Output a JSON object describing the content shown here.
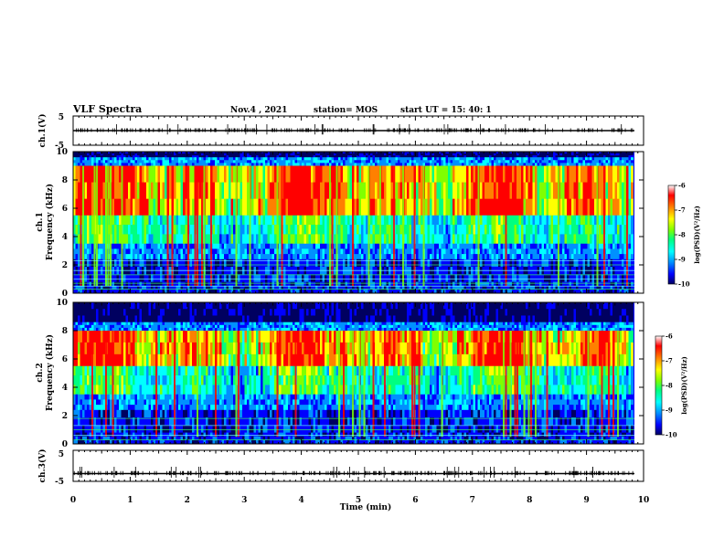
{
  "header": {
    "title": "VLF Spectra",
    "date": "Nov.4 , 2021",
    "station": "station= MOS",
    "start": "start UT = 15: 40: 1"
  },
  "colors": {
    "cmap": [
      "#000060",
      "#0000ff",
      "#0090ff",
      "#00ffff",
      "#00ff80",
      "#80ff00",
      "#ffff00",
      "#ff8000",
      "#ff0000",
      "#ffffff"
    ],
    "trace": "#000000",
    "line_green": "#33ff66",
    "line_cyan": "#66ffff"
  },
  "chart_data": [
    {
      "type": "line",
      "name": "ch1-waveform",
      "ylabel": "ch.1(V)",
      "ylim": [
        -5,
        5
      ],
      "yticks": [
        5,
        -5
      ],
      "xlim": [
        0,
        10
      ],
      "baseline": 0
    },
    {
      "type": "heatmap",
      "name": "ch1-spectrogram",
      "ylabel": "ch.1\nFrequency (kHz)",
      "ylim": [
        0,
        10
      ],
      "yticks": [
        0,
        2,
        4,
        6,
        8,
        10
      ],
      "xlim": [
        0,
        10
      ],
      "colorbar": {
        "label": "log(PSD)(V²/Hz)",
        "range": [
          -10,
          -6
        ],
        "ticks": [
          -6,
          -7,
          -8,
          -9,
          -10
        ]
      },
      "band_kHz": [
        5.5,
        9.0
      ],
      "narrowband_lines_kHz": [
        0.3,
        0.5,
        0.7,
        1.0,
        1.3,
        1.6,
        2.0,
        2.3
      ]
    },
    {
      "type": "heatmap",
      "name": "ch2-spectrogram",
      "ylabel": "ch.2\nFrequency (kHz)",
      "ylim": [
        0,
        10
      ],
      "yticks": [
        0,
        2,
        4,
        6,
        8,
        10
      ],
      "xlim": [
        0,
        10
      ],
      "colorbar": {
        "label": "log(PSD)(V²/Hz)",
        "range": [
          -10,
          -6
        ],
        "ticks": [
          -6,
          -7,
          -8,
          -9,
          -10
        ]
      },
      "band_kHz": [
        5.5,
        8.0
      ],
      "narrowband_lines_kHz": [
        0.3,
        0.6,
        1.0,
        1.3,
        1.8
      ]
    },
    {
      "type": "line",
      "name": "ch3-waveform",
      "ylabel": "ch.3(V)",
      "ylim": [
        -5,
        5
      ],
      "yticks": [
        5,
        -5
      ],
      "xlim": [
        0,
        10
      ],
      "baseline": -2.5
    }
  ],
  "xaxis": {
    "label": "Time (min)",
    "ticks": [
      0,
      1,
      2,
      3,
      4,
      5,
      6,
      7,
      8,
      9,
      10
    ]
  }
}
